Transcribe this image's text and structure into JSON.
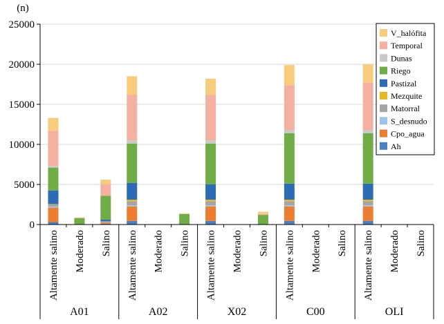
{
  "chart_data": {
    "type": "bar",
    "stacked": true,
    "title": "",
    "ylabel": "(n)",
    "xlabel": "",
    "ylim": [
      0,
      25000
    ],
    "yticks": [
      0,
      5000,
      10000,
      15000,
      20000,
      25000
    ],
    "ytick_labels": [
      "0",
      "5000",
      "10000",
      "15000",
      "20000",
      "25000"
    ],
    "groups": [
      "A01",
      "A02",
      "X02",
      "C00",
      "OLI"
    ],
    "categories": [
      "Altamente salino",
      "Moderado",
      "Salino",
      "Altamente salino",
      "Moderado",
      "Salino",
      "Altamente salino",
      "Moderado",
      "Salino",
      "Altamente salino",
      "Moderado",
      "Salino",
      "Altamente salino",
      "Moderado",
      "Salino"
    ],
    "legend_position": "top-right",
    "series": [
      {
        "name": "Ah",
        "color": "#4a7fc1",
        "values": [
          300,
          0,
          100,
          450,
          0,
          0,
          450,
          0,
          0,
          450,
          0,
          0,
          450,
          0,
          0
        ]
      },
      {
        "name": "Cpo_agua",
        "color": "#ed7d31",
        "values": [
          1800,
          0,
          150,
          1800,
          0,
          0,
          1800,
          0,
          0,
          1800,
          0,
          0,
          1800,
          0,
          0
        ]
      },
      {
        "name": "S_desnudo",
        "color": "#9dc3e6",
        "values": [
          150,
          0,
          50,
          150,
          0,
          0,
          150,
          0,
          0,
          150,
          0,
          0,
          150,
          0,
          0
        ]
      },
      {
        "name": "Matorral",
        "color": "#a5a5a5",
        "values": [
          250,
          0,
          100,
          500,
          0,
          0,
          500,
          0,
          0,
          500,
          0,
          0,
          500,
          0,
          0
        ]
      },
      {
        "name": "Mezquite",
        "color": "#e8b820",
        "values": [
          50,
          0,
          0,
          200,
          0,
          0,
          200,
          0,
          0,
          200,
          0,
          0,
          200,
          0,
          0
        ]
      },
      {
        "name": "Pastizal",
        "color": "#2e6bb5",
        "values": [
          1700,
          0,
          200,
          2100,
          0,
          0,
          1900,
          0,
          0,
          2000,
          0,
          0,
          2000,
          0,
          0
        ]
      },
      {
        "name": "Riego",
        "color": "#70ad47",
        "values": [
          2850,
          800,
          3000,
          4900,
          0,
          1300,
          5100,
          0,
          1200,
          6300,
          0,
          0,
          6300,
          0,
          0
        ]
      },
      {
        "name": "Dunas",
        "color": "#c9c9c9",
        "values": [
          200,
          0,
          0,
          400,
          0,
          0,
          400,
          0,
          0,
          400,
          0,
          0,
          400,
          0,
          0
        ]
      },
      {
        "name": "Temporal",
        "color": "#f4b0a0",
        "values": [
          4400,
          50,
          1450,
          5700,
          0,
          0,
          5700,
          0,
          100,
          5600,
          0,
          0,
          5900,
          0,
          0
        ]
      },
      {
        "name": "V_halófita",
        "color": "#f7cd7d",
        "values": [
          1600,
          50,
          550,
          2300,
          0,
          100,
          2000,
          0,
          300,
          2500,
          0,
          0,
          2300,
          0,
          0
        ]
      }
    ]
  }
}
